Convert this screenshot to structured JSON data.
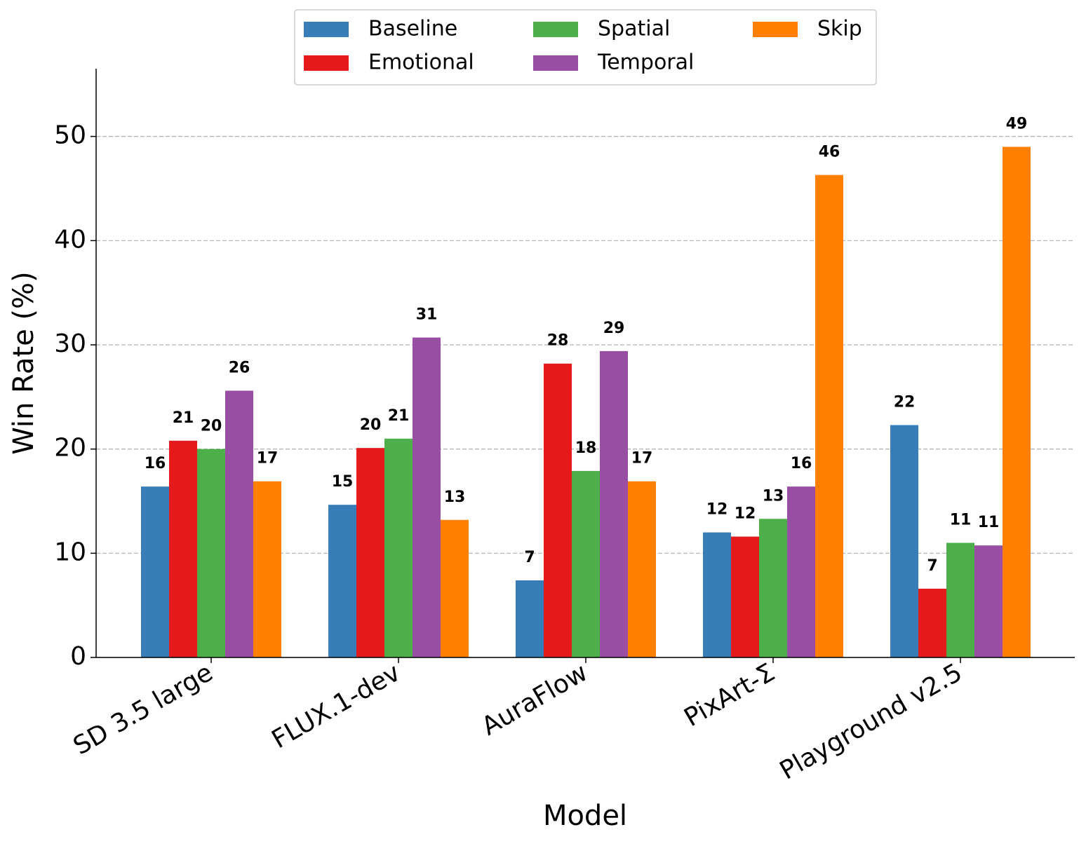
{
  "chart_data": {
    "type": "bar",
    "x_label": "Model",
    "y_label": "Win Rate (%)",
    "categories": [
      "SD 3.5 large",
      "FLUX.1-dev",
      "AuraFlow",
      "PixArt-Σ",
      "Playground v2.5"
    ],
    "series": [
      {
        "name": "Baseline",
        "color": "#377eb8",
        "values": [
          16.4,
          14.65,
          7.4,
          12.0,
          22.3
        ],
        "value_labels": [
          "16",
          "15",
          "7",
          "12",
          "22"
        ]
      },
      {
        "name": "Emotional",
        "color": "#e41a1c",
        "values": [
          20.8,
          20.1,
          28.2,
          11.6,
          6.6
        ],
        "value_labels": [
          "21",
          "20",
          "28",
          "12",
          "7"
        ]
      },
      {
        "name": "Spatial",
        "color": "#4daf4a",
        "values": [
          20.0,
          21.0,
          17.9,
          13.3,
          11.0
        ],
        "value_labels": [
          "20",
          "21",
          "18",
          "13",
          "11"
        ]
      },
      {
        "name": "Temporal",
        "color": "#984ea3",
        "values": [
          25.6,
          30.7,
          29.4,
          16.4,
          10.75
        ],
        "value_labels": [
          "26",
          "31",
          "29",
          "16",
          "11"
        ]
      },
      {
        "name": "Skip",
        "color": "#ff7f00",
        "values": [
          16.9,
          13.2,
          16.9,
          46.3,
          49.0
        ],
        "value_labels": [
          "17",
          "13",
          "17",
          "46",
          "49"
        ]
      }
    ],
    "ylim": [
      0,
      56.5
    ],
    "yticks": [
      0,
      10,
      20,
      30,
      40,
      50
    ],
    "grid": true,
    "legend": "top"
  }
}
